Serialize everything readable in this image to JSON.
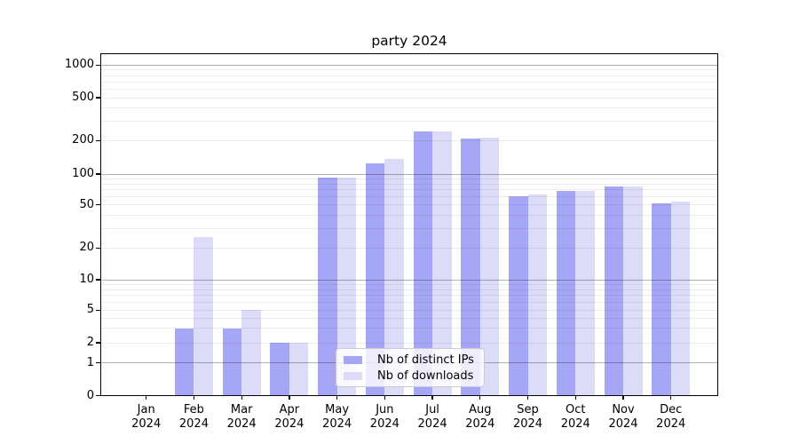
{
  "chart_data": {
    "type": "bar",
    "title": "party 2024",
    "categories": [
      "Jan 2024",
      "Feb 2024",
      "Mar 2024",
      "Apr 2024",
      "May 2024",
      "Jun 2024",
      "Jul 2024",
      "Aug 2024",
      "Sep 2024",
      "Oct 2024",
      "Nov 2024",
      "Dec 2024"
    ],
    "series": [
      {
        "name": "Nb of distinct IPs",
        "color": "#a6a6f6",
        "values": [
          0,
          3,
          3,
          2,
          92,
          125,
          245,
          210,
          61,
          68,
          76,
          52
        ]
      },
      {
        "name": "Nb of downloads",
        "color": "#dcdcf9",
        "values": [
          0,
          25,
          5,
          2,
          92,
          136,
          245,
          214,
          63,
          68,
          76,
          54
        ]
      }
    ],
    "yticks": [
      0,
      1,
      2,
      5,
      10,
      20,
      50,
      100,
      200,
      500,
      1000
    ],
    "ylim": [
      0,
      1280
    ],
    "yscale": "log-like with linear segment near zero (symlog)",
    "xlabel": "",
    "ylabel": "",
    "grid": {
      "on": true,
      "major_at": [
        1,
        10,
        100,
        1000
      ],
      "minor": "2-9 per decade",
      "drawn_above_bars": true
    },
    "legend": {
      "position": "bottom-center-inside"
    }
  },
  "colors": {
    "bar_distinct_ips": "#a6a6f6",
    "bar_downloads": "#dcdcf9",
    "grid_major": "rgba(0,0,0,0.30)",
    "grid_minor": "rgba(0,0,0,0.07)",
    "spine": "#000000",
    "text": "#000000",
    "legend_border": "#cccccc",
    "background": "#ffffff"
  }
}
